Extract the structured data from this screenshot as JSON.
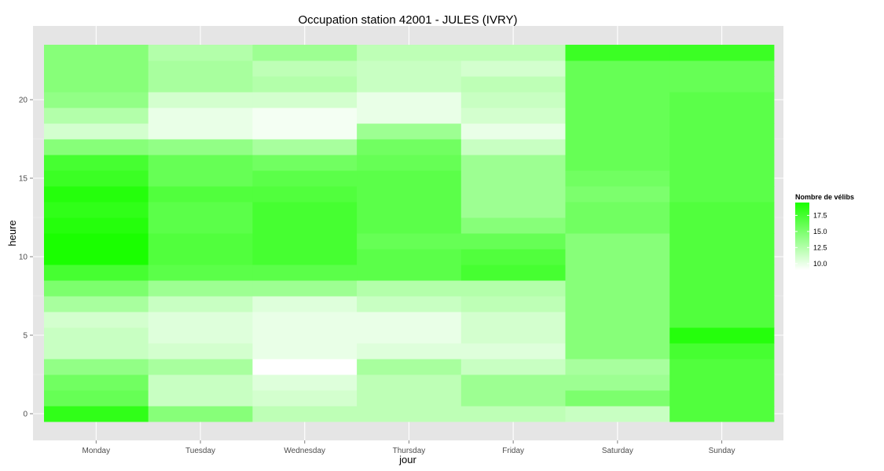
{
  "chart_data": {
    "type": "heatmap",
    "title": "Occupation station 42001 - JULES (IVRY)",
    "xlabel": "jour",
    "ylabel": "heure",
    "categories": [
      "Monday",
      "Tuesday",
      "Wednesday",
      "Thursday",
      "Friday",
      "Saturday",
      "Sunday"
    ],
    "hours": [
      0,
      1,
      2,
      3,
      4,
      5,
      6,
      7,
      8,
      9,
      10,
      11,
      12,
      13,
      14,
      15,
      16,
      17,
      18,
      19,
      20,
      21,
      22,
      23
    ],
    "yticks": [
      0,
      5,
      10,
      15,
      20
    ],
    "ylim": [
      -0.5,
      23.5
    ],
    "grid": true,
    "values": [
      [
        18.5,
        14.5,
        12.0,
        12.0,
        12.0,
        11.5,
        17.0
      ],
      [
        16.0,
        11.5,
        11.0,
        12.0,
        13.5,
        15.0,
        17.0
      ],
      [
        15.5,
        11.5,
        10.5,
        12.0,
        13.5,
        13.5,
        17.0
      ],
      [
        14.0,
        13.0,
        9.0,
        13.0,
        11.5,
        13.0,
        17.0
      ],
      [
        11.5,
        11.0,
        10.0,
        10.5,
        10.5,
        14.5,
        17.5
      ],
      [
        11.5,
        10.5,
        10.0,
        10.0,
        11.0,
        14.5,
        19.0
      ],
      [
        11.0,
        10.5,
        10.0,
        10.0,
        11.0,
        14.5,
        17.0
      ],
      [
        13.0,
        11.5,
        10.5,
        11.5,
        12.0,
        14.5,
        17.0
      ],
      [
        15.0,
        13.5,
        13.5,
        12.5,
        12.5,
        14.5,
        17.0
      ],
      [
        17.5,
        16.5,
        16.5,
        16.5,
        17.5,
        14.5,
        17.0
      ],
      [
        19.5,
        17.0,
        17.5,
        16.5,
        17.0,
        14.5,
        17.0
      ],
      [
        19.5,
        17.0,
        17.5,
        16.0,
        16.0,
        14.5,
        17.0
      ],
      [
        19.0,
        16.5,
        17.5,
        16.5,
        14.5,
        15.5,
        17.0
      ],
      [
        18.5,
        16.5,
        17.5,
        16.5,
        13.5,
        15.5,
        17.0
      ],
      [
        19.0,
        17.0,
        17.0,
        16.5,
        13.5,
        15.0,
        16.5
      ],
      [
        18.0,
        16.0,
        16.5,
        16.5,
        13.5,
        15.5,
        16.5
      ],
      [
        17.5,
        16.0,
        15.5,
        16.0,
        13.5,
        16.0,
        16.5
      ],
      [
        14.5,
        14.0,
        13.0,
        15.5,
        11.5,
        16.0,
        16.5
      ],
      [
        11.0,
        10.0,
        9.5,
        13.5,
        10.0,
        16.0,
        16.5
      ],
      [
        12.5,
        10.0,
        9.5,
        10.0,
        11.0,
        16.0,
        16.5
      ],
      [
        14.0,
        11.0,
        11.0,
        10.0,
        11.5,
        16.0,
        16.5
      ],
      [
        14.5,
        13.0,
        12.5,
        11.5,
        12.0,
        16.0,
        16.0
      ],
      [
        14.5,
        13.0,
        12.0,
        11.5,
        11.0,
        16.0,
        16.0
      ],
      [
        14.5,
        12.5,
        13.5,
        12.0,
        12.0,
        18.0,
        18.0
      ]
    ],
    "legend": {
      "title": "Nombre de vélibs",
      "ticks": [
        "10.0",
        "12.5",
        "15.0",
        "17.5"
      ],
      "tick_values": [
        10.0,
        12.5,
        15.0,
        17.5
      ],
      "range": [
        9.0,
        19.5
      ],
      "placement": "right"
    },
    "colors": {
      "low": "#ffffff",
      "high": "#1aff00",
      "panel": "#e5e5e5",
      "grid": "#ffffff"
    }
  }
}
